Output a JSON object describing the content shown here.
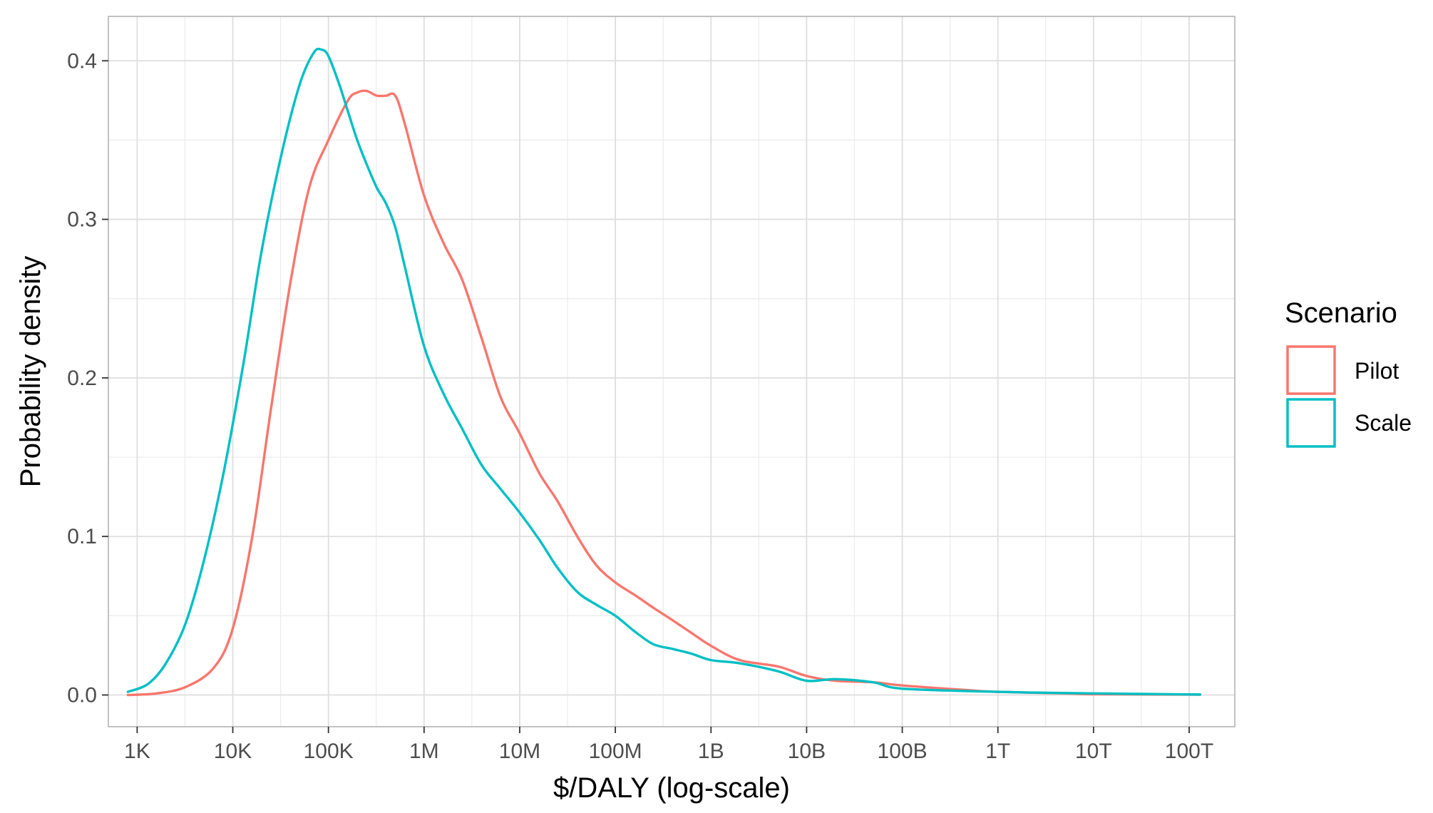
{
  "chart_data": {
    "type": "line",
    "xlabel": "$/DALY (log-scale)",
    "ylabel": "Probability density",
    "x_scale": "log10",
    "xlim": [
      500,
      300000000000000.0
    ],
    "ylim": [
      -0.02,
      0.428
    ],
    "x_ticks": [
      {
        "value": 1000.0,
        "label": "1K"
      },
      {
        "value": 10000.0,
        "label": "10K"
      },
      {
        "value": 100000.0,
        "label": "100K"
      },
      {
        "value": 1000000.0,
        "label": "1M"
      },
      {
        "value": 10000000.0,
        "label": "10M"
      },
      {
        "value": 100000000.0,
        "label": "100M"
      },
      {
        "value": 1000000000.0,
        "label": "1B"
      },
      {
        "value": 10000000000.0,
        "label": "10B"
      },
      {
        "value": 100000000000.0,
        "label": "100B"
      },
      {
        "value": 1000000000000.0,
        "label": "1T"
      },
      {
        "value": 10000000000000.0,
        "label": "10T"
      },
      {
        "value": 100000000000000.0,
        "label": "100T"
      }
    ],
    "y_ticks": [
      {
        "value": 0.0,
        "label": "0.0"
      },
      {
        "value": 0.1,
        "label": "0.1"
      },
      {
        "value": 0.2,
        "label": "0.2"
      },
      {
        "value": 0.3,
        "label": "0.3"
      },
      {
        "value": 0.4,
        "label": "0.4"
      }
    ],
    "grid": true,
    "legend": {
      "title": "Scenario",
      "position": "right"
    },
    "series": [
      {
        "name": "Pilot",
        "color": "#F8766D",
        "x": [
          800,
          1600,
          3200,
          6300,
          10000,
          16000,
          25000,
          40000,
          63000,
          100000,
          160000,
          200000,
          250000,
          320000,
          400000,
          500000,
          630000,
          1000000,
          1600000,
          2500000,
          4000000,
          6300000,
          10000000,
          16000000,
          25000000,
          40000000,
          63000000,
          100000000,
          160000000,
          250000000,
          400000000,
          630000000,
          1000000000,
          2000000000,
          5000000000,
          10000000000,
          20000000000,
          50000000000,
          100000000000,
          500000000000,
          1000000000000,
          5000000000000,
          10000000000000,
          50000000000000,
          130000000000000
        ],
        "y": [
          0.0,
          0.001,
          0.005,
          0.017,
          0.042,
          0.1,
          0.18,
          0.26,
          0.32,
          0.35,
          0.375,
          0.38,
          0.381,
          0.378,
          0.378,
          0.378,
          0.36,
          0.315,
          0.285,
          0.262,
          0.225,
          0.188,
          0.165,
          0.14,
          0.122,
          0.1,
          0.082,
          0.071,
          0.063,
          0.055,
          0.047,
          0.039,
          0.031,
          0.022,
          0.018,
          0.012,
          0.009,
          0.008,
          0.006,
          0.003,
          0.002,
          0.001,
          0.0005,
          0.0003,
          0.0002
        ]
      },
      {
        "name": "Scale",
        "color": "#00BFC4",
        "x": [
          800,
          1300,
          2000,
          3200,
          5000,
          8000,
          13000,
          20000,
          32000,
          50000,
          70000,
          85000,
          100000,
          130000,
          160000,
          200000,
          250000,
          320000,
          400000,
          500000,
          630000,
          1000000,
          1600000,
          2500000,
          4000000,
          6300000,
          10000000,
          16000000,
          25000000,
          40000000,
          63000000,
          100000000,
          160000000,
          250000000,
          400000000,
          630000000,
          1000000000,
          2000000000,
          5000000000,
          10000000000,
          20000000000,
          50000000000,
          100000000000,
          1000000000000,
          10000000000000,
          130000000000000
        ],
        "y": [
          0.002,
          0.007,
          0.02,
          0.045,
          0.085,
          0.14,
          0.21,
          0.28,
          0.34,
          0.385,
          0.405,
          0.407,
          0.403,
          0.385,
          0.368,
          0.35,
          0.335,
          0.32,
          0.31,
          0.295,
          0.27,
          0.22,
          0.19,
          0.168,
          0.145,
          0.13,
          0.115,
          0.098,
          0.08,
          0.065,
          0.057,
          0.05,
          0.04,
          0.032,
          0.029,
          0.026,
          0.022,
          0.02,
          0.015,
          0.009,
          0.01,
          0.008,
          0.004,
          0.002,
          0.001,
          0.0003
        ]
      }
    ]
  }
}
